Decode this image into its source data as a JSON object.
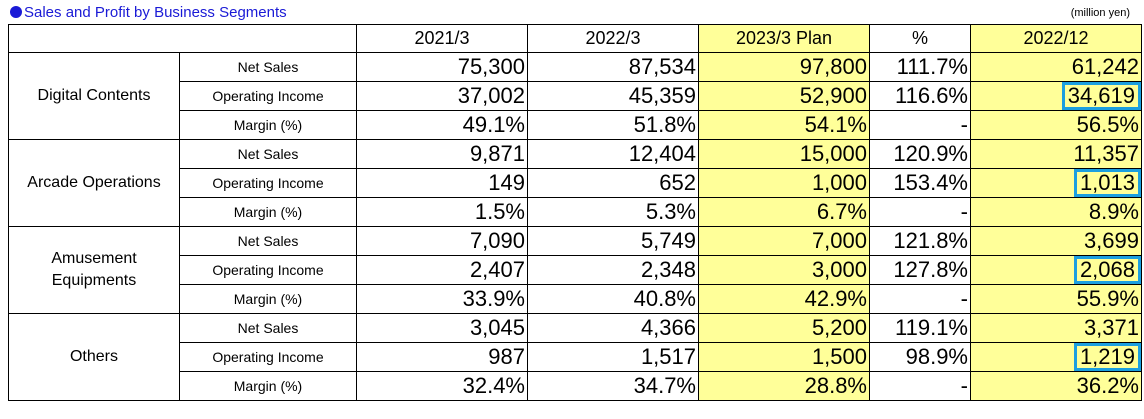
{
  "title": "Sales and Profit by Business Segments",
  "unit": "(million yen)",
  "columns": [
    "2021/3",
    "2022/3",
    "2023/3 Plan",
    "%",
    "2022/12"
  ],
  "highlight_color": "#1b9fe0",
  "plan_fill_color": "#ffff99",
  "segments": [
    {
      "name": "Digital Contents",
      "rows": [
        {
          "metric": "Net Sales",
          "values": [
            "75,300",
            "87,534",
            "97,800",
            "111.7%",
            "61,242"
          ]
        },
        {
          "metric": "Operating Income",
          "values": [
            "37,002",
            "45,359",
            "52,900",
            "116.6%",
            "34,619"
          ]
        },
        {
          "metric": "Margin (%)",
          "values": [
            "49.1%",
            "51.8%",
            "54.1%",
            "-",
            "56.5%"
          ]
        }
      ]
    },
    {
      "name": "Arcade Operations",
      "rows": [
        {
          "metric": "Net Sales",
          "values": [
            "9,871",
            "12,404",
            "15,000",
            "120.9%",
            "11,357"
          ]
        },
        {
          "metric": "Operating Income",
          "values": [
            "149",
            "652",
            "1,000",
            "153.4%",
            "1,013"
          ]
        },
        {
          "metric": "Margin (%)",
          "values": [
            "1.5%",
            "5.3%",
            "6.7%",
            "-",
            "8.9%"
          ]
        }
      ]
    },
    {
      "name": "Amusement\nEquipments",
      "rows": [
        {
          "metric": "Net Sales",
          "values": [
            "7,090",
            "5,749",
            "7,000",
            "121.8%",
            "3,699"
          ]
        },
        {
          "metric": "Operating Income",
          "values": [
            "2,407",
            "2,348",
            "3,000",
            "127.8%",
            "2,068"
          ]
        },
        {
          "metric": "Margin (%)",
          "values": [
            "33.9%",
            "40.8%",
            "42.9%",
            "-",
            "55.9%"
          ]
        }
      ]
    },
    {
      "name": "Others",
      "rows": [
        {
          "metric": "Net Sales",
          "values": [
            "3,045",
            "4,366",
            "5,200",
            "119.1%",
            "3,371"
          ]
        },
        {
          "metric": "Operating Income",
          "values": [
            "987",
            "1,517",
            "1,500",
            "98.9%",
            "1,219"
          ]
        },
        {
          "metric": "Margin (%)",
          "values": [
            "32.4%",
            "34.7%",
            "28.8%",
            "-",
            "36.2%"
          ]
        }
      ]
    }
  ]
}
